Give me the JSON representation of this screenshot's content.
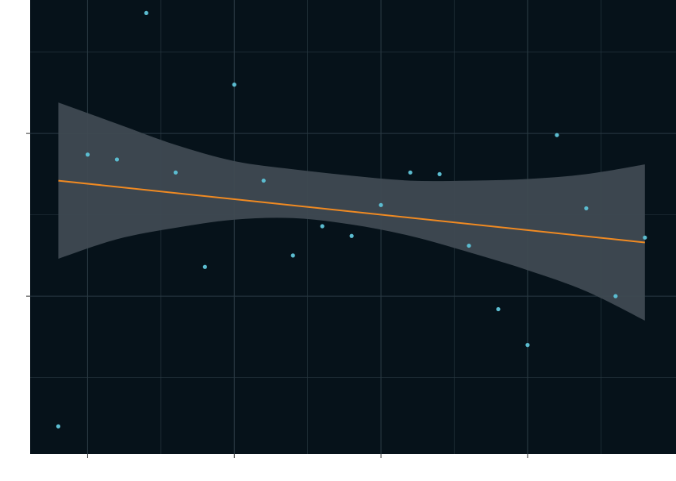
{
  "chart_data": {
    "type": "scatter",
    "title": "",
    "xlabel": "",
    "ylabel": "",
    "grid": true,
    "x_major_ticks": [
      2,
      7,
      12,
      17
    ],
    "x_minor_ticks": [
      4.5,
      9.5,
      14.5,
      19.5
    ],
    "y_major_ticks": [
      -0.5,
      0.5
    ],
    "y_minor_ticks": [
      -1.0,
      0.0,
      1.0
    ],
    "xlim": [
      0.04,
      22.06
    ],
    "ylim": [
      -1.47,
      1.32
    ],
    "series": [
      {
        "values": [
          {
            "x": 1,
            "y": -1.3
          },
          {
            "x": 2,
            "y": 0.37
          },
          {
            "x": 3,
            "y": 0.34
          },
          {
            "x": 4,
            "y": 1.24
          },
          {
            "x": 5,
            "y": 0.26
          },
          {
            "x": 6,
            "y": -0.32
          },
          {
            "x": 7,
            "y": 0.8
          },
          {
            "x": 8,
            "y": 0.21
          },
          {
            "x": 9,
            "y": -0.25
          },
          {
            "x": 10,
            "y": -0.07
          },
          {
            "x": 11,
            "y": -0.13
          },
          {
            "x": 12,
            "y": 0.06
          },
          {
            "x": 13,
            "y": 0.26
          },
          {
            "x": 14,
            "y": 0.25
          },
          {
            "x": 15,
            "y": -0.19
          },
          {
            "x": 16,
            "y": -0.58
          },
          {
            "x": 17,
            "y": -0.8
          },
          {
            "x": 18,
            "y": 0.49
          },
          {
            "x": 19,
            "y": 0.04
          },
          {
            "x": 20,
            "y": -0.5
          },
          {
            "x": 21,
            "y": -0.14
          }
        ]
      }
    ],
    "trend_line": {
      "x": [
        1,
        21
      ],
      "y": [
        0.21,
        -0.17
      ]
    },
    "confidence_band": {
      "x": [
        1,
        3,
        5,
        7,
        9,
        11,
        13,
        15,
        17,
        19,
        21
      ],
      "upper": [
        0.69,
        0.56,
        0.43,
        0.33,
        0.28,
        0.24,
        0.21,
        0.21,
        0.22,
        0.25,
        0.31
      ],
      "lower": [
        -0.27,
        -0.15,
        -0.08,
        -0.03,
        -0.02,
        -0.06,
        -0.13,
        -0.23,
        -0.34,
        -0.47,
        -0.65
      ]
    },
    "colors": {
      "background": "#06121a",
      "grid": "#2a3a43",
      "points": "#5bbcd0",
      "trend_line": "#f08a22",
      "band": "#3f4a52",
      "page": "#ffffff",
      "axis_tick": "#333333"
    }
  }
}
